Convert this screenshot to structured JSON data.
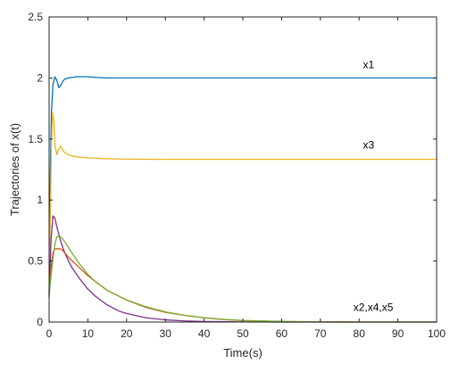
{
  "chart_data": {
    "type": "line",
    "title": "",
    "xlabel": "Time(s)",
    "ylabel": "Trajectories of x(t)",
    "xlim": [
      0,
      100
    ],
    "ylim": [
      0,
      2.5
    ],
    "xticks": [
      0,
      10,
      20,
      30,
      40,
      50,
      60,
      70,
      80,
      90,
      100
    ],
    "yticks": [
      0,
      0.5,
      1,
      1.5,
      2,
      2.5
    ],
    "xtick_labels": [
      "0",
      "10",
      "20",
      "30",
      "40",
      "50",
      "60",
      "70",
      "80",
      "90",
      "100"
    ],
    "ytick_labels": [
      "0",
      "0.5",
      "1",
      "1.5",
      "2",
      "2.5"
    ],
    "grid": false,
    "box": true,
    "series": [
      {
        "color": "#0072BD",
        "x": [
          0,
          0.3,
          0.6,
          1.0,
          1.5,
          2.0,
          2.5,
          3.0,
          3.5,
          4.0,
          5.0,
          6.0,
          7.0,
          8.0,
          10.0,
          12.0,
          15.0,
          20.0,
          30.0,
          40.0,
          50.0,
          60.0,
          70.0,
          80.0,
          90.0,
          100.0
        ],
        "y": [
          0.22,
          1.2,
          1.72,
          1.95,
          2.01,
          1.98,
          1.92,
          1.94,
          1.97,
          1.99,
          2.0,
          2.005,
          2.01,
          2.01,
          2.01,
          2.005,
          2.0,
          2.0,
          2.0,
          2.0,
          2.0,
          2.0,
          2.0,
          2.0,
          2.0,
          2.0
        ]
      },
      {
        "color": "#EDB120",
        "x": [
          0,
          0.3,
          0.6,
          0.9,
          1.2,
          1.5,
          2.0,
          2.5,
          3.0,
          3.5,
          4.0,
          5.0,
          6.0,
          8.0,
          10.0,
          15.0,
          20.0,
          30.0,
          40.0,
          50.0,
          60.0,
          70.0,
          80.0,
          90.0,
          100.0
        ],
        "y": [
          0.22,
          0.85,
          1.45,
          1.72,
          1.65,
          1.45,
          1.37,
          1.42,
          1.44,
          1.41,
          1.39,
          1.37,
          1.36,
          1.35,
          1.345,
          1.338,
          1.335,
          1.333,
          1.333,
          1.333,
          1.333,
          1.333,
          1.333,
          1.333,
          1.333
        ]
      },
      {
        "color": "#7E2F8E",
        "x": [
          0,
          0.5,
          1.0,
          1.5,
          2.0,
          3.0,
          4.0,
          5.0,
          6.0,
          8.0,
          10.0,
          12.0,
          15.0,
          18.0,
          20.0,
          25.0,
          30.0,
          35.0,
          40.0,
          50.0,
          60.0,
          80.0,
          100.0
        ],
        "y": [
          0.2,
          0.68,
          0.87,
          0.85,
          0.78,
          0.66,
          0.57,
          0.5,
          0.44,
          0.35,
          0.27,
          0.21,
          0.14,
          0.09,
          0.07,
          0.035,
          0.018,
          0.009,
          0.004,
          0.001,
          0.0,
          0.0,
          0.0
        ]
      },
      {
        "color": "#D95319",
        "x": [
          0,
          0.5,
          1.0,
          1.5,
          2.0,
          3.0,
          4.0,
          5.0,
          6.0,
          8.0,
          10.0,
          12.0,
          15.0,
          20.0,
          25.0,
          30.0,
          35.0,
          40.0,
          45.0,
          50.0,
          60.0,
          70.0,
          80.0,
          100.0
        ],
        "y": [
          0.25,
          0.45,
          0.57,
          0.6,
          0.6,
          0.6,
          0.57,
          0.53,
          0.5,
          0.44,
          0.38,
          0.33,
          0.26,
          0.18,
          0.12,
          0.08,
          0.055,
          0.035,
          0.02,
          0.012,
          0.004,
          0.001,
          0.0,
          0.0
        ]
      },
      {
        "color": "#77AC30",
        "x": [
          0,
          0.5,
          1.0,
          1.5,
          2.0,
          3.0,
          4.0,
          5.0,
          6.0,
          8.0,
          10.0,
          12.0,
          15.0,
          20.0,
          25.0,
          30.0,
          35.0,
          40.0,
          45.0,
          50.0,
          60.0,
          70.0,
          80.0,
          100.0
        ],
        "y": [
          0.22,
          0.38,
          0.52,
          0.64,
          0.7,
          0.7,
          0.66,
          0.61,
          0.56,
          0.47,
          0.39,
          0.33,
          0.26,
          0.18,
          0.125,
          0.083,
          0.055,
          0.035,
          0.022,
          0.013,
          0.005,
          0.001,
          0.0,
          0.0
        ]
      }
    ],
    "annotations": [
      {
        "text": "x1",
        "x": 81,
        "y": 2.08
      },
      {
        "text": "x3",
        "x": 81,
        "y": 1.42
      },
      {
        "text": "x2,x4,x5",
        "x": 78.5,
        "y": 0.09
      }
    ]
  }
}
